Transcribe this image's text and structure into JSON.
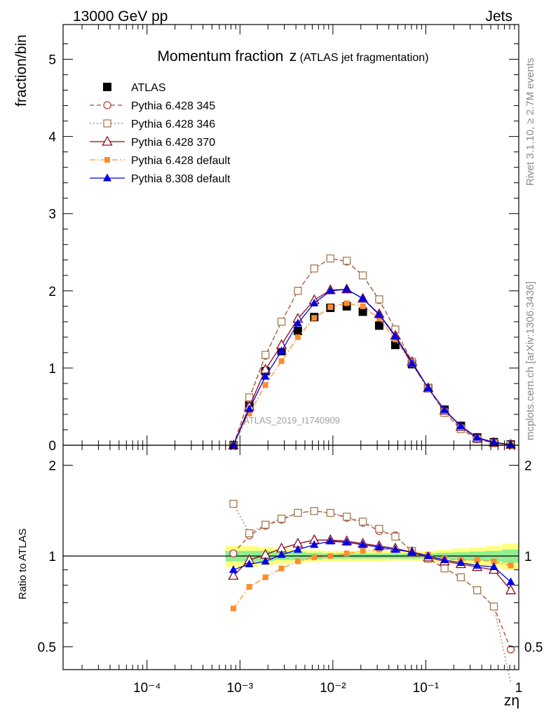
{
  "header": {
    "left": "13000 GeV pp",
    "right": "Jets"
  },
  "side": {
    "rivet": "Rivet 3.1.10, ≥ 2.7M events",
    "mcplots": "mcplots.cern.ch [arXiv:1306.3436]"
  },
  "colors": {
    "band_stat": "#90ee90",
    "band_total": "#ffff80",
    "atlas": "#000000",
    "p345": "#b0413e",
    "p346": "#a47a50",
    "p370": "#8b0a1a",
    "p6def": "#ff8c2a",
    "p8def": "#0000e6"
  },
  "chart_data": [
    {
      "type": "line",
      "title": "Momentum fraction",
      "title_symbol": "z",
      "subtitle": "(ATLAS jet fragmentation)",
      "ylabel": "fraction/bin",
      "watermark": "ATLAS_2019_I1740909",
      "x_scale": "log",
      "xlim": [
        1.25e-05,
        1.0
      ],
      "ylim": [
        0,
        5.45
      ],
      "y_ticks": [
        0,
        1,
        2,
        3,
        4,
        5
      ],
      "y_tick_labels": [
        "0",
        "1",
        "2",
        "3",
        "4",
        "5"
      ],
      "legend_position": "top-left",
      "x": [
        0.00085,
        0.00126,
        0.00188,
        0.0028,
        0.0042,
        0.0063,
        0.0094,
        0.0141,
        0.021,
        0.0315,
        0.047,
        0.071,
        0.106,
        0.159,
        0.238,
        0.357,
        0.54,
        0.82
      ],
      "series": [
        {
          "name": "ATLAS",
          "key": "atlas",
          "marker": "square-filled",
          "line": "none",
          "values": [
            0.0,
            0.52,
            0.96,
            1.22,
            1.48,
            1.66,
            1.78,
            1.8,
            1.73,
            1.55,
            1.3,
            1.05,
            0.74,
            0.46,
            0.25,
            0.1,
            0.04,
            0.01
          ]
        },
        {
          "name": "Pythia 6.428 345",
          "key": "p345",
          "marker": "circle-open",
          "line": "dashed",
          "values": [
            0.0,
            0.6,
            1.16,
            1.6,
            2.0,
            2.29,
            2.42,
            2.38,
            2.2,
            1.88,
            1.5,
            1.08,
            0.74,
            0.42,
            0.21,
            0.08,
            0.027,
            0.005
          ]
        },
        {
          "name": "Pythia 6.428 346",
          "key": "p346",
          "marker": "square-open",
          "line": "dotted",
          "values": [
            0.0,
            0.62,
            1.17,
            1.6,
            2.0,
            2.29,
            2.42,
            2.39,
            2.2,
            1.89,
            1.5,
            1.08,
            0.74,
            0.42,
            0.21,
            0.08,
            0.027,
            0.004
          ]
        },
        {
          "name": "Pythia 6.428 370",
          "key": "p370",
          "marker": "triangle-open",
          "line": "solid",
          "values": [
            0.0,
            0.5,
            0.98,
            1.3,
            1.64,
            1.88,
            2.01,
            2.02,
            1.9,
            1.7,
            1.42,
            1.08,
            0.74,
            0.45,
            0.24,
            0.09,
            0.035,
            0.008
          ]
        },
        {
          "name": "Pythia 6.428 default",
          "key": "p6def",
          "marker": "square-filled-small",
          "line": "dashdot",
          "values": [
            0.0,
            0.41,
            0.78,
            1.09,
            1.4,
            1.65,
            1.79,
            1.84,
            1.8,
            1.64,
            1.37,
            1.05,
            0.73,
            0.45,
            0.24,
            0.1,
            0.038,
            0.009
          ]
        },
        {
          "name": "Pythia 8.308 default",
          "key": "p8def",
          "marker": "triangle-filled",
          "line": "solid",
          "values": [
            0.0,
            0.47,
            0.89,
            1.22,
            1.58,
            1.84,
            2.0,
            2.02,
            1.9,
            1.69,
            1.41,
            1.06,
            0.74,
            0.46,
            0.25,
            0.1,
            0.038,
            0.008
          ]
        }
      ]
    },
    {
      "type": "line",
      "ylabel": "Ratio to ATLAS",
      "xlabel": "zη",
      "x_scale": "log",
      "xlim": [
        1.25e-05,
        1.0
      ],
      "ylim": [
        0.42,
        2.33
      ],
      "y_ticks": [
        0.5,
        1,
        2
      ],
      "y_tick_labels": [
        "0.5",
        "1",
        "2"
      ],
      "x_ticks": [
        0.0001,
        0.001,
        0.01,
        0.1,
        1
      ],
      "x_tick_labels": [
        "10⁻⁴",
        "10⁻³",
        "10⁻²",
        "10⁻¹",
        "1"
      ],
      "reference": 1,
      "band_stat_halfwidth": [
        0.04,
        0.04,
        0.04,
        0.03,
        0.03,
        0.025,
        0.02,
        0.02,
        0.02,
        0.02,
        0.02,
        0.02,
        0.02,
        0.025,
        0.03,
        0.035,
        0.04,
        0.05
      ],
      "band_total_halfwidth": [
        0.08,
        0.08,
        0.07,
        0.06,
        0.05,
        0.045,
        0.04,
        0.04,
        0.04,
        0.04,
        0.035,
        0.035,
        0.04,
        0.05,
        0.06,
        0.07,
        0.08,
        0.1
      ],
      "x": [
        0.00085,
        0.00126,
        0.00188,
        0.0028,
        0.0042,
        0.0063,
        0.0094,
        0.0141,
        0.021,
        0.0315,
        0.047,
        0.071,
        0.106,
        0.159,
        0.238,
        0.357,
        0.54,
        0.82
      ],
      "series": [
        {
          "key": "p345",
          "marker": "circle-open",
          "line": "dashed",
          "values": [
            1.02,
            1.17,
            1.26,
            1.32,
            1.39,
            1.41,
            1.39,
            1.34,
            1.29,
            1.21,
            1.17,
            1.03,
            0.98,
            0.91,
            0.85,
            0.77,
            0.68,
            0.49
          ]
        },
        {
          "key": "p346",
          "marker": "square-open",
          "line": "dotted",
          "values": [
            1.49,
            1.19,
            1.27,
            1.33,
            1.39,
            1.41,
            1.39,
            1.35,
            1.3,
            1.23,
            1.16,
            1.04,
            0.98,
            0.91,
            0.85,
            0.77,
            0.68,
            0.38
          ]
        },
        {
          "key": "p370",
          "marker": "triangle-open",
          "line": "solid",
          "values": [
            0.86,
            0.97,
            1.01,
            1.06,
            1.1,
            1.13,
            1.13,
            1.12,
            1.1,
            1.08,
            1.06,
            1.03,
            0.99,
            0.96,
            0.94,
            0.92,
            0.9,
            0.77
          ]
        },
        {
          "key": "p6def",
          "marker": "square-filled-small",
          "line": "dashdot",
          "values": [
            0.67,
            0.79,
            0.85,
            0.91,
            0.96,
            0.99,
            1.0,
            1.02,
            1.04,
            1.05,
            1.05,
            1.03,
            1.01,
            0.98,
            0.97,
            0.97,
            0.96,
            0.93
          ]
        },
        {
          "key": "p8def",
          "marker": "triangle-filled",
          "line": "solid",
          "values": [
            0.9,
            0.94,
            0.96,
            1.01,
            1.05,
            1.09,
            1.12,
            1.11,
            1.09,
            1.07,
            1.05,
            1.03,
            1.0,
            0.97,
            0.95,
            0.93,
            0.92,
            0.82
          ]
        }
      ]
    }
  ]
}
